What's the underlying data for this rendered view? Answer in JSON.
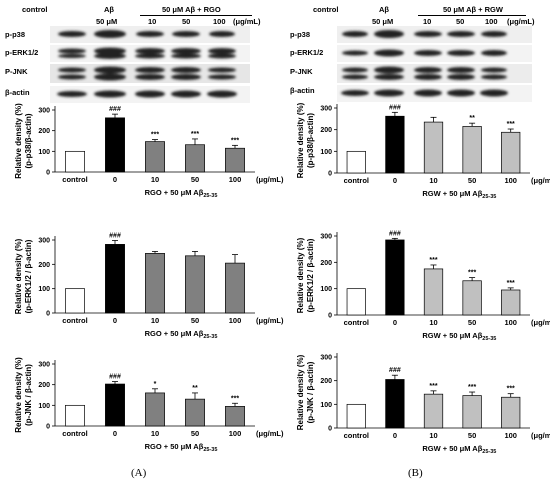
{
  "blots": [
    {
      "header": {
        "control": "control",
        "abeta": "Aβ",
        "abeta_dose": "50 μM",
        "treat": "50 μM  Aβ  + RGO",
        "doses": [
          "10",
          "50",
          "100"
        ],
        "unit": "(μg/mL)"
      },
      "rows": [
        "p-p38",
        "p-ERK1/2",
        "P-JNK",
        "β-actin"
      ]
    },
    {
      "header": {
        "control": "control",
        "abeta": "Aβ",
        "abeta_dose": "50 μM",
        "treat": "50 μM  Aβ  + RGW",
        "doses": [
          "10",
          "50",
          "100"
        ],
        "unit": "(μg/mL)"
      },
      "rows": [
        "p-p38",
        "p-ERK1/2",
        "P-JNK",
        "β-actin"
      ]
    }
  ],
  "chart_data": [
    {
      "type": "bar",
      "panel": "A",
      "categories": [
        "control",
        "0",
        "10",
        "50",
        "100"
      ],
      "unit_label": "(μg/mL)",
      "values": [
        100,
        262,
        147,
        132,
        115
      ],
      "errors": [
        0,
        18,
        10,
        28,
        14
      ],
      "significance": [
        "",
        "###",
        "***",
        "***",
        "***"
      ],
      "ylabel": "Relative density (%) (p-p38/β-actin)",
      "xlabel": "RGO + 50 μM Aβ25-35",
      "yticks": [
        0,
        100,
        200,
        300
      ],
      "ylim": [
        0,
        300
      ],
      "colors": [
        "#ffffff",
        "#000000",
        "#808080",
        "#808080",
        "#808080"
      ]
    },
    {
      "type": "bar",
      "panel": "A",
      "categories": [
        "control",
        "0",
        "10",
        "50",
        "100"
      ],
      "unit_label": "(μg/mL)",
      "values": [
        100,
        282,
        245,
        235,
        205
      ],
      "errors": [
        0,
        16,
        8,
        18,
        35
      ],
      "significance": [
        "",
        "###",
        "",
        "",
        ""
      ],
      "ylabel": "Relative density (%) (p-ERK1/2 / β-actin)",
      "xlabel": "RGO + 50 μM Aβ25-35",
      "yticks": [
        0,
        100,
        200,
        300
      ],
      "ylim": [
        0,
        300
      ],
      "colors": [
        "#ffffff",
        "#000000",
        "#808080",
        "#808080",
        "#808080"
      ]
    },
    {
      "type": "bar",
      "panel": "A",
      "categories": [
        "control",
        "0",
        "10",
        "50",
        "100"
      ],
      "unit_label": "(μg/mL)",
      "values": [
        100,
        203,
        160,
        130,
        95
      ],
      "errors": [
        0,
        12,
        20,
        30,
        15
      ],
      "significance": [
        "",
        "###",
        "*",
        "**",
        "***"
      ],
      "ylabel": "Relative density (%) (p-JNK / β-actin)",
      "xlabel": "RGO + 50 μM Aβ25-35",
      "yticks": [
        0,
        100,
        200,
        300
      ],
      "ylim": [
        0,
        300
      ],
      "colors": [
        "#ffffff",
        "#000000",
        "#808080",
        "#808080",
        "#808080"
      ]
    },
    {
      "type": "bar",
      "panel": "B",
      "categories": [
        "control",
        "0",
        "10",
        "50",
        "100"
      ],
      "unit_label": "(μg/mL)",
      "values": [
        100,
        262,
        235,
        215,
        188
      ],
      "errors": [
        0,
        18,
        22,
        15,
        15
      ],
      "significance": [
        "",
        "###",
        "",
        "**",
        "***"
      ],
      "ylabel": "Relative density (%) (p-p38/β-actin)",
      "xlabel": "RGW + 50 μM Aβ25-35",
      "yticks": [
        0,
        100,
        200,
        300
      ],
      "ylim": [
        0,
        300
      ],
      "colors": [
        "#ffffff",
        "#000000",
        "#c0c0c0",
        "#c0c0c0",
        "#c0c0c0"
      ]
    },
    {
      "type": "bar",
      "panel": "B",
      "categories": [
        "control",
        "0",
        "10",
        "50",
        "100"
      ],
      "unit_label": "(μg/mL)",
      "values": [
        100,
        285,
        175,
        130,
        95
      ],
      "errors": [
        0,
        6,
        15,
        12,
        8
      ],
      "significance": [
        "",
        "###",
        "***",
        "***",
        "***"
      ],
      "ylabel": "Relative density (%) (p-ERK1/2 / β-actin)",
      "xlabel": "RGW + 50 μM Aβ25-35",
      "yticks": [
        0,
        100,
        200,
        300
      ],
      "ylim": [
        0,
        300
      ],
      "colors": [
        "#ffffff",
        "#000000",
        "#c0c0c0",
        "#c0c0c0",
        "#c0c0c0"
      ]
    },
    {
      "type": "bar",
      "panel": "B",
      "categories": [
        "control",
        "0",
        "10",
        "50",
        "100"
      ],
      "unit_label": "(μg/mL)",
      "values": [
        100,
        205,
        143,
        137,
        130
      ],
      "errors": [
        0,
        18,
        14,
        15,
        15
      ],
      "significance": [
        "",
        "###",
        "***",
        "***",
        "***"
      ],
      "ylabel": "Relative density (%) (p-JNK / β-actin)",
      "xlabel": "RGW + 50 μM Aβ25-35",
      "yticks": [
        0,
        100,
        200,
        300
      ],
      "ylim": [
        0,
        300
      ],
      "colors": [
        "#ffffff",
        "#000000",
        "#c0c0c0",
        "#c0c0c0",
        "#c0c0c0"
      ]
    }
  ],
  "panel_labels": [
    "(A)",
    "(B)"
  ]
}
